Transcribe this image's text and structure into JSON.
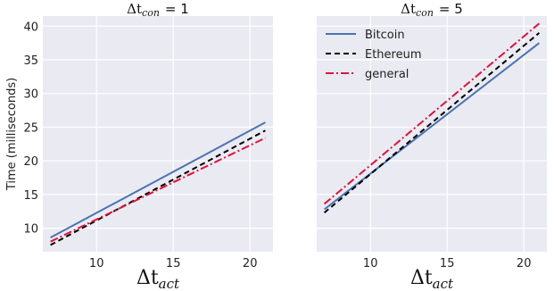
{
  "chart_data": [
    {
      "type": "line",
      "title": "Δt",
      "title_sub": "con",
      "title_suffix": "= 1",
      "xlabel": "Δt",
      "xlabel_sub": "act",
      "ylabel": "Time (milliseconds)",
      "xlim": [
        6.5,
        21.5
      ],
      "ylim": [
        6.5,
        41.5
      ],
      "xticks": [
        10,
        15,
        20
      ],
      "yticks": [
        10,
        15,
        20,
        25,
        30,
        35,
        40
      ],
      "grid": true,
      "series": [
        {
          "name": "Bitcoin",
          "color": "#4c72b0",
          "dash": "solid",
          "x": [
            7,
            21
          ],
          "y": [
            8.6,
            25.7
          ]
        },
        {
          "name": "Ethereum",
          "color": "#000000",
          "dash": "dashed",
          "x": [
            7,
            21
          ],
          "y": [
            7.5,
            24.5
          ]
        },
        {
          "name": "general",
          "color": "#dc143c",
          "dash": "dashdot",
          "x": [
            7,
            21
          ],
          "y": [
            8.0,
            23.4
          ]
        }
      ]
    },
    {
      "type": "line",
      "title": "Δt",
      "title_sub": "con",
      "title_suffix": "= 5",
      "xlabel": "Δt",
      "xlabel_sub": "act",
      "ylabel": "",
      "xlim": [
        6.5,
        21.5
      ],
      "ylim": [
        6.5,
        41.5
      ],
      "xticks": [
        10,
        15,
        20
      ],
      "yticks": [
        10,
        15,
        20,
        25,
        30,
        35,
        40
      ],
      "grid": true,
      "legend": "top-left",
      "series": [
        {
          "name": "Bitcoin",
          "color": "#4c72b0",
          "dash": "solid",
          "x": [
            7,
            21
          ],
          "y": [
            12.8,
            37.5
          ]
        },
        {
          "name": "Ethereum",
          "color": "#000000",
          "dash": "dashed",
          "x": [
            7,
            21
          ],
          "y": [
            12.3,
            39.0
          ]
        },
        {
          "name": "general",
          "color": "#dc143c",
          "dash": "dashdot",
          "x": [
            7,
            21
          ],
          "y": [
            13.6,
            40.4
          ]
        }
      ]
    }
  ]
}
